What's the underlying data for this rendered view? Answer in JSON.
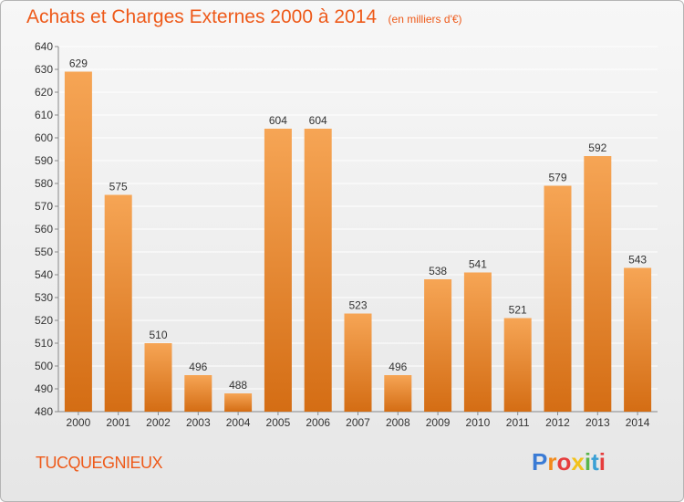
{
  "title": "Achats et Charges Externes 2000 à 2014",
  "subtitle": "(en milliers d'€)",
  "commune": "TUCQUEGNIEUX",
  "logo": {
    "text": "Proxiti",
    "colors": [
      "#3a7bd5",
      "#f28a1b",
      "#e63d3d",
      "#f2c21b",
      "#5ab54b",
      "#3aa0d5",
      "#e63d3d"
    ]
  },
  "colors": {
    "accent": "#ee5a1a",
    "bar_light": "#f6a555",
    "bar_dark": "#d46d14",
    "grid": "#ffffff",
    "text": "#333333"
  },
  "chart_data": {
    "type": "bar",
    "categories": [
      "2000",
      "2001",
      "2002",
      "2003",
      "2004",
      "2005",
      "2006",
      "2007",
      "2008",
      "2009",
      "2010",
      "2011",
      "2012",
      "2013",
      "2014"
    ],
    "values": [
      629,
      575,
      510,
      496,
      488,
      604,
      604,
      523,
      496,
      538,
      541,
      521,
      579,
      592,
      543
    ],
    "title": "Achats et Charges Externes 2000 à 2014",
    "ylim": [
      480,
      640
    ],
    "yticks": [
      480,
      490,
      500,
      510,
      520,
      530,
      540,
      550,
      560,
      570,
      580,
      590,
      600,
      610,
      620,
      630,
      640
    ],
    "grid": true,
    "data_labels": true
  }
}
